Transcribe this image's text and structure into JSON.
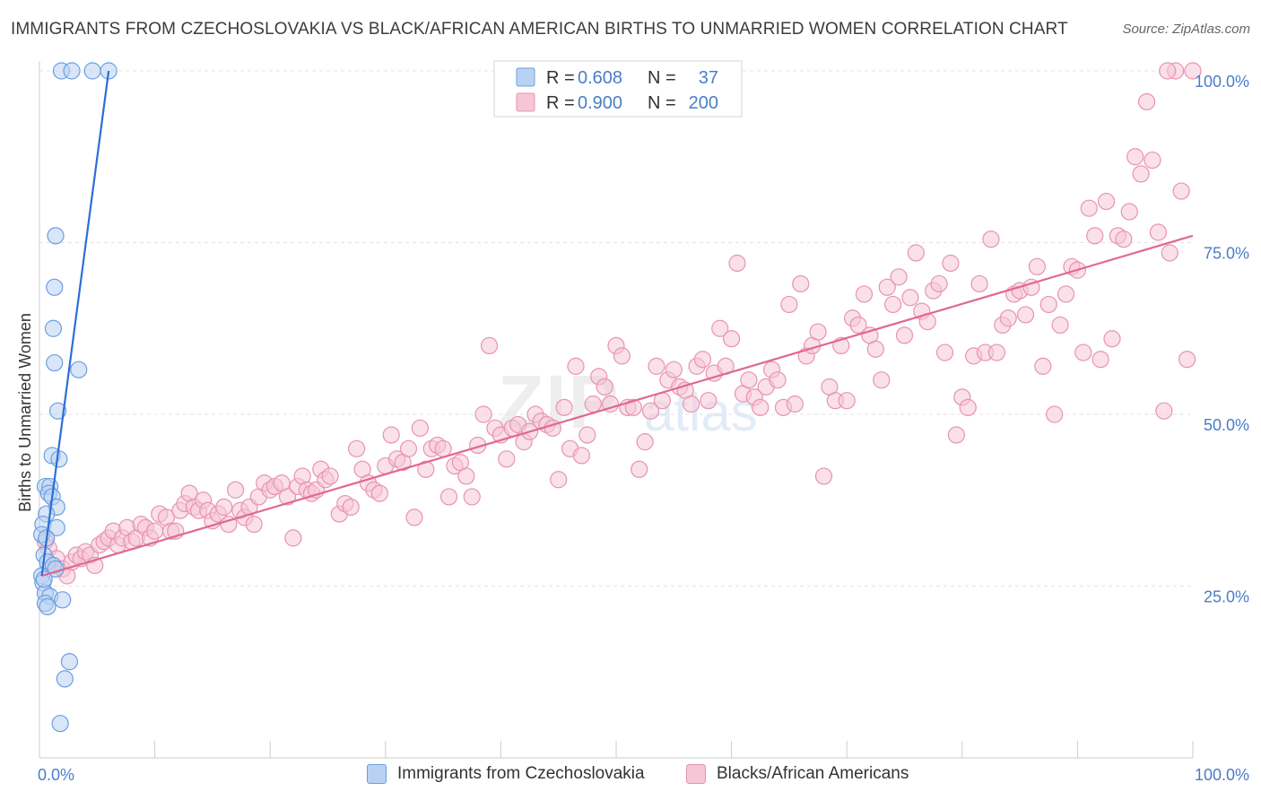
{
  "title": "IMMIGRANTS FROM CZECHOSLOVAKIA VS BLACK/AFRICAN AMERICAN BIRTHS TO UNMARRIED WOMEN CORRELATION CHART",
  "source": "Source: ZipAtlas.com",
  "watermark": {
    "zip": "ZIP",
    "atlas": "atlas"
  },
  "colors": {
    "blue": "#6a9fe0",
    "blue_fill": "#b9d2f3",
    "blue_line": "#2a6fd6",
    "pink": "#e893b1",
    "pink_fill": "#f6c6d6",
    "pink_line": "#e0698f",
    "axis_text": "#4a7dc9",
    "grid": "#e3e3e3"
  },
  "legend_top": {
    "rows": [
      {
        "r_label": "R =",
        "r_value": "0.608",
        "n_label": "N =",
        "n_value": "37",
        "color": "blue"
      },
      {
        "r_label": "R =",
        "r_value": "0.900",
        "n_label": "N =",
        "n_value": "200",
        "color": "pink"
      }
    ]
  },
  "legend_bottom": [
    {
      "label": "Immigrants from Czechoslovakia",
      "color": "blue"
    },
    {
      "label": "Blacks/African Americans",
      "color": "pink"
    }
  ],
  "chart_data": {
    "type": "scatter",
    "title": "IMMIGRANTS FROM CZECHOSLOVAKIA VS BLACK/AFRICAN AMERICAN BIRTHS TO UNMARRIED WOMEN CORRELATION CHART",
    "xlabel": "",
    "ylabel": "Births to Unmarried Women",
    "xlim": [
      0,
      100
    ],
    "ylim": [
      0,
      102
    ],
    "x_tick_labels": [
      "0.0%",
      "100.0%"
    ],
    "y_ticks": [
      25,
      50,
      75,
      100
    ],
    "y_tick_labels": [
      "25.0%",
      "50.0%",
      "75.0%",
      "100.0%"
    ],
    "grid": true,
    "legend_position": "top-center",
    "series": [
      {
        "name": "Immigrants from Czechoslovakia",
        "color": "blue",
        "r": 0.608,
        "n": 37,
        "trend": {
          "x": [
            0.2,
            6.0
          ],
          "y": [
            26.5,
            100
          ]
        },
        "points": [
          [
            1.9,
            100
          ],
          [
            2.8,
            100
          ],
          [
            4.6,
            100
          ],
          [
            6.0,
            100
          ],
          [
            1.4,
            76.0
          ],
          [
            1.3,
            68.5
          ],
          [
            1.2,
            62.5
          ],
          [
            1.3,
            57.5
          ],
          [
            3.4,
            56.5
          ],
          [
            1.6,
            50.5
          ],
          [
            1.1,
            44.0
          ],
          [
            1.7,
            43.5
          ],
          [
            0.5,
            39.5
          ],
          [
            0.9,
            39.5
          ],
          [
            0.8,
            38.5
          ],
          [
            1.1,
            38.0
          ],
          [
            1.5,
            36.5
          ],
          [
            0.6,
            35.5
          ],
          [
            0.3,
            34.0
          ],
          [
            1.5,
            33.5
          ],
          [
            0.2,
            32.5
          ],
          [
            0.6,
            32.0
          ],
          [
            0.4,
            29.5
          ],
          [
            0.7,
            28.5
          ],
          [
            1.2,
            28.0
          ],
          [
            1.4,
            27.5
          ],
          [
            0.2,
            26.5
          ],
          [
            0.3,
            25.5
          ],
          [
            0.5,
            24.0
          ],
          [
            0.9,
            23.5
          ],
          [
            2.0,
            23.0
          ],
          [
            0.5,
            22.5
          ],
          [
            0.7,
            22.0
          ],
          [
            2.6,
            14.0
          ],
          [
            2.2,
            11.5
          ],
          [
            1.8,
            5.0
          ],
          [
            0.4,
            26.0
          ]
        ]
      },
      {
        "name": "Blacks/African Americans",
        "color": "pink",
        "r": 0.9,
        "n": 200,
        "trend": {
          "x": [
            0.2,
            100
          ],
          "y": [
            26.5,
            76
          ]
        },
        "points": [
          [
            0.5,
            31.5
          ],
          [
            0.8,
            30.5
          ],
          [
            1.2,
            28.0
          ],
          [
            1.5,
            29.0
          ],
          [
            2.0,
            27.5
          ],
          [
            2.4,
            26.5
          ],
          [
            2.8,
            28.5
          ],
          [
            3.2,
            29.5
          ],
          [
            3.6,
            29.0
          ],
          [
            4.0,
            30.0
          ],
          [
            4.4,
            29.5
          ],
          [
            4.8,
            28.0
          ],
          [
            5.2,
            31.0
          ],
          [
            5.6,
            31.5
          ],
          [
            6.0,
            32.0
          ],
          [
            6.4,
            33.0
          ],
          [
            6.8,
            31.0
          ],
          [
            7.2,
            32.0
          ],
          [
            7.6,
            33.5
          ],
          [
            8.0,
            31.5
          ],
          [
            8.4,
            32.0
          ],
          [
            8.8,
            34.0
          ],
          [
            9.2,
            33.5
          ],
          [
            9.6,
            32.0
          ],
          [
            10.0,
            33.0
          ],
          [
            10.4,
            35.5
          ],
          [
            11.0,
            35.0
          ],
          [
            11.4,
            33.0
          ],
          [
            11.8,
            33.0
          ],
          [
            12.2,
            36.0
          ],
          [
            12.6,
            37.0
          ],
          [
            13.0,
            38.5
          ],
          [
            13.4,
            36.5
          ],
          [
            13.8,
            36.0
          ],
          [
            14.2,
            37.5
          ],
          [
            14.6,
            36.0
          ],
          [
            15.0,
            34.5
          ],
          [
            15.5,
            35.5
          ],
          [
            16.0,
            36.5
          ],
          [
            16.4,
            34.0
          ],
          [
            17.0,
            39.0
          ],
          [
            17.4,
            36.0
          ],
          [
            17.8,
            35.0
          ],
          [
            18.2,
            36.5
          ],
          [
            18.6,
            34.0
          ],
          [
            19.0,
            38.0
          ],
          [
            19.5,
            40.0
          ],
          [
            20.0,
            39.0
          ],
          [
            20.4,
            39.5
          ],
          [
            21.0,
            40.0
          ],
          [
            21.5,
            38.0
          ],
          [
            22.0,
            32.0
          ],
          [
            22.4,
            39.5
          ],
          [
            22.8,
            41.0
          ],
          [
            23.2,
            39.0
          ],
          [
            23.6,
            38.5
          ],
          [
            24.0,
            39.0
          ],
          [
            24.4,
            42.0
          ],
          [
            24.8,
            40.5
          ],
          [
            25.2,
            41.0
          ],
          [
            26.0,
            35.5
          ],
          [
            26.5,
            37.0
          ],
          [
            27.0,
            36.5
          ],
          [
            27.5,
            45.0
          ],
          [
            28.0,
            42.0
          ],
          [
            28.5,
            40.0
          ],
          [
            29.0,
            39.0
          ],
          [
            29.5,
            38.5
          ],
          [
            30.0,
            42.5
          ],
          [
            30.5,
            47.0
          ],
          [
            31.0,
            43.5
          ],
          [
            31.5,
            43.0
          ],
          [
            32.0,
            45.0
          ],
          [
            32.5,
            35.0
          ],
          [
            33.0,
            48.0
          ],
          [
            33.5,
            42.0
          ],
          [
            34.0,
            45.0
          ],
          [
            34.5,
            45.5
          ],
          [
            35.0,
            45.0
          ],
          [
            35.5,
            38.0
          ],
          [
            36.0,
            42.5
          ],
          [
            36.5,
            43.0
          ],
          [
            37.0,
            41.0
          ],
          [
            37.5,
            38.0
          ],
          [
            38.0,
            45.5
          ],
          [
            38.5,
            50.0
          ],
          [
            39.0,
            60.0
          ],
          [
            39.5,
            48.0
          ],
          [
            40.0,
            47.0
          ],
          [
            40.5,
            43.5
          ],
          [
            41.0,
            48.0
          ],
          [
            41.5,
            48.5
          ],
          [
            42.0,
            46.0
          ],
          [
            42.5,
            47.5
          ],
          [
            43.0,
            50.0
          ],
          [
            43.5,
            49.0
          ],
          [
            44.0,
            48.5
          ],
          [
            44.5,
            48.0
          ],
          [
            45.0,
            40.5
          ],
          [
            45.5,
            51.0
          ],
          [
            46.0,
            45.0
          ],
          [
            46.5,
            57.0
          ],
          [
            47.0,
            44.0
          ],
          [
            47.5,
            47.0
          ],
          [
            48.0,
            51.5
          ],
          [
            48.5,
            55.5
          ],
          [
            49.0,
            54.0
          ],
          [
            49.5,
            51.5
          ],
          [
            50.0,
            60.0
          ],
          [
            50.5,
            58.5
          ],
          [
            51.0,
            51.0
          ],
          [
            51.5,
            51.0
          ],
          [
            52.0,
            42.0
          ],
          [
            52.5,
            46.0
          ],
          [
            53.0,
            50.5
          ],
          [
            53.5,
            57.0
          ],
          [
            54.0,
            52.0
          ],
          [
            54.5,
            55.0
          ],
          [
            55.0,
            56.5
          ],
          [
            55.5,
            54.0
          ],
          [
            56.0,
            53.5
          ],
          [
            56.5,
            51.5
          ],
          [
            57.0,
            57.0
          ],
          [
            57.5,
            58.0
          ],
          [
            58.0,
            52.0
          ],
          [
            58.5,
            56.0
          ],
          [
            59.0,
            62.5
          ],
          [
            59.5,
            57.0
          ],
          [
            60.0,
            61.0
          ],
          [
            60.5,
            72.0
          ],
          [
            61.0,
            53.0
          ],
          [
            61.5,
            55.0
          ],
          [
            62.0,
            52.5
          ],
          [
            62.5,
            51.0
          ],
          [
            63.0,
            54.0
          ],
          [
            63.5,
            56.5
          ],
          [
            64.0,
            55.0
          ],
          [
            64.5,
            51.0
          ],
          [
            65.0,
            66.0
          ],
          [
            65.5,
            51.5
          ],
          [
            66.0,
            69.0
          ],
          [
            66.5,
            58.5
          ],
          [
            67.0,
            60.0
          ],
          [
            67.5,
            62.0
          ],
          [
            68.0,
            41.0
          ],
          [
            68.5,
            54.0
          ],
          [
            69.0,
            52.0
          ],
          [
            69.5,
            60.0
          ],
          [
            70.0,
            52.0
          ],
          [
            70.5,
            64.0
          ],
          [
            71.0,
            63.0
          ],
          [
            71.5,
            67.5
          ],
          [
            72.0,
            61.5
          ],
          [
            72.5,
            59.5
          ],
          [
            73.0,
            55.0
          ],
          [
            73.5,
            68.5
          ],
          [
            74.0,
            66.0
          ],
          [
            74.5,
            70.0
          ],
          [
            75.0,
            61.5
          ],
          [
            75.5,
            67.0
          ],
          [
            76.0,
            73.5
          ],
          [
            76.5,
            65.0
          ],
          [
            77.0,
            63.5
          ],
          [
            77.5,
            68.0
          ],
          [
            78.0,
            69.0
          ],
          [
            78.5,
            59.0
          ],
          [
            79.0,
            72.0
          ],
          [
            79.5,
            47.0
          ],
          [
            80.0,
            52.5
          ],
          [
            80.5,
            51.0
          ],
          [
            81.0,
            58.5
          ],
          [
            81.5,
            69.0
          ],
          [
            82.0,
            59.0
          ],
          [
            82.5,
            75.5
          ],
          [
            83.0,
            59.0
          ],
          [
            83.5,
            63.0
          ],
          [
            84.0,
            64.0
          ],
          [
            84.5,
            67.5
          ],
          [
            85.0,
            68.0
          ],
          [
            85.5,
            64.5
          ],
          [
            86.0,
            68.5
          ],
          [
            86.5,
            71.5
          ],
          [
            87.0,
            57.0
          ],
          [
            87.5,
            66.0
          ],
          [
            88.0,
            50.0
          ],
          [
            88.5,
            63.0
          ],
          [
            89.0,
            67.5
          ],
          [
            89.5,
            71.5
          ],
          [
            90.0,
            71.0
          ],
          [
            90.5,
            59.0
          ],
          [
            91.0,
            80.0
          ],
          [
            91.5,
            76.0
          ],
          [
            92.0,
            58.0
          ],
          [
            92.5,
            81.0
          ],
          [
            93.0,
            61.0
          ],
          [
            93.5,
            76.0
          ],
          [
            94.0,
            75.5
          ],
          [
            94.5,
            79.5
          ],
          [
            95.0,
            87.5
          ],
          [
            95.5,
            85.0
          ],
          [
            96.0,
            95.5
          ],
          [
            96.5,
            87.0
          ],
          [
            97.0,
            76.5
          ],
          [
            97.5,
            50.5
          ],
          [
            98.0,
            73.5
          ],
          [
            98.5,
            100
          ],
          [
            99.0,
            82.5
          ],
          [
            99.5,
            58.0
          ],
          [
            100.0,
            100
          ],
          [
            97.8,
            100
          ]
        ]
      }
    ]
  }
}
